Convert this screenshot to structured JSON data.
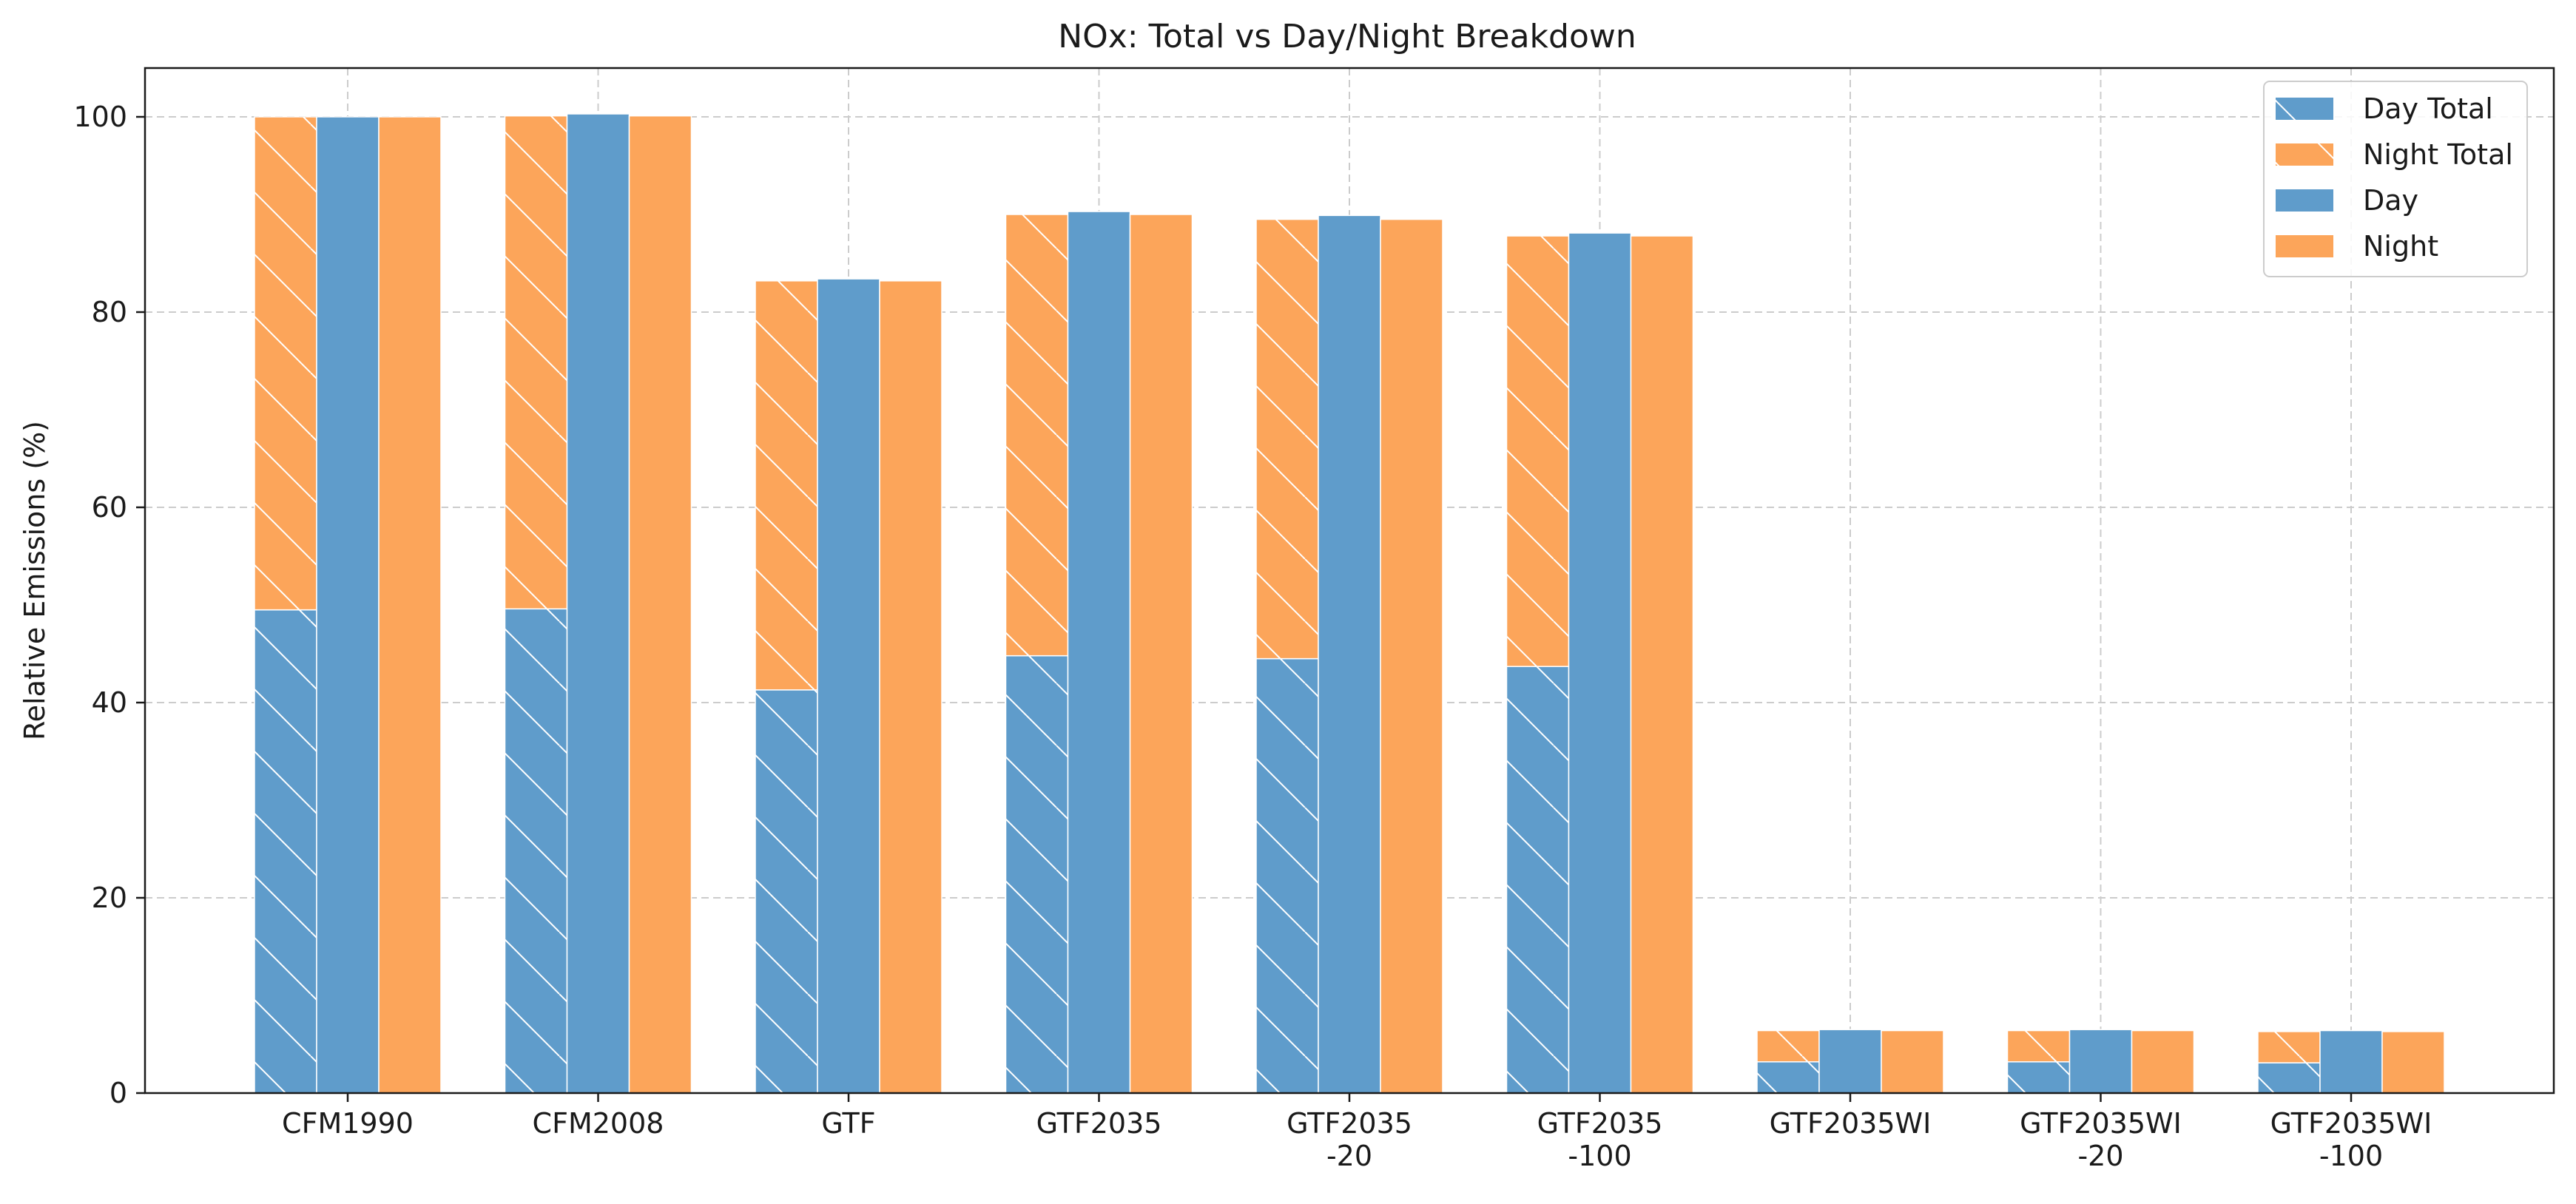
{
  "chart_data": {
    "type": "bar",
    "title": "NOx: Total vs Day/Night Breakdown",
    "xlabel": "",
    "ylabel": "Relative Emissions (%)",
    "ylim": [
      0,
      105
    ],
    "yticks": [
      0,
      20,
      40,
      60,
      80,
      100
    ],
    "grid": true,
    "legend_position": "top-right",
    "categories": [
      [
        "CFM1990"
      ],
      [
        "CFM2008"
      ],
      [
        "GTF"
      ],
      [
        "GTF2035"
      ],
      [
        "GTF2035",
        "-20"
      ],
      [
        "GTF2035",
        "-100"
      ],
      [
        "GTF2035WI"
      ],
      [
        "GTF2035WI",
        "-20"
      ],
      [
        "GTF2035WI",
        "-100"
      ]
    ],
    "series": [
      {
        "name": "Day Total",
        "color": "#5f9ccb",
        "hatch": true,
        "stack": "total",
        "values": [
          49.5,
          49.6,
          41.3,
          44.8,
          44.5,
          43.7,
          3.2,
          3.2,
          3.1
        ]
      },
      {
        "name": "Night Total",
        "color": "#fca55a",
        "hatch": true,
        "stack": "total",
        "values": [
          50.5,
          50.5,
          41.9,
          45.2,
          45.0,
          44.1,
          3.2,
          3.2,
          3.2
        ]
      },
      {
        "name": "Day",
        "color": "#5f9ccb",
        "hatch": false,
        "values": [
          100.0,
          100.3,
          83.4,
          90.3,
          89.9,
          88.1,
          6.5,
          6.5,
          6.4
        ]
      },
      {
        "name": "Night",
        "color": "#fca55a",
        "hatch": false,
        "values": [
          100.0,
          100.1,
          83.2,
          90.0,
          89.5,
          87.8,
          6.4,
          6.4,
          6.3
        ]
      }
    ]
  }
}
